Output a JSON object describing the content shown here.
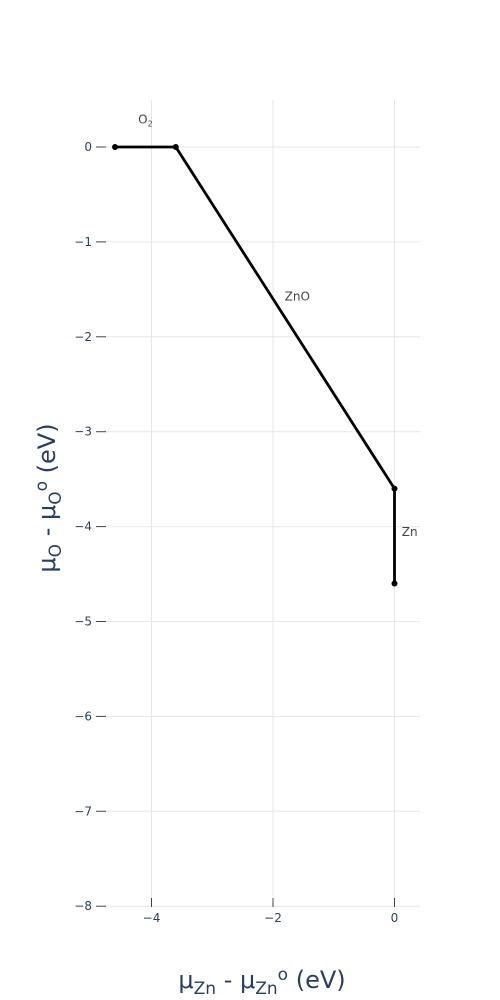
{
  "chart_data": {
    "type": "line",
    "title": "",
    "xlabel": "μ_Zn - μ_Zn^o (eV)",
    "ylabel": "μ_O - μ_O^o (eV)",
    "xlim": [
      -4.6,
      0.42
    ],
    "ylim": [
      -8,
      0.5
    ],
    "grid": true,
    "x_ticks": [
      -4,
      -2,
      0
    ],
    "x_tick_labels": [
      "−4",
      "−2",
      "0"
    ],
    "y_ticks": [
      0,
      -1,
      -2,
      -3,
      -4,
      -5,
      -6,
      -7,
      -8
    ],
    "y_tick_labels": [
      "0",
      "−1",
      "−2",
      "−3",
      "−4",
      "−5",
      "−6",
      "−7",
      "−8"
    ],
    "series": [
      {
        "name": "O2",
        "x": [
          -4.6,
          -3.6
        ],
        "y": [
          0,
          0
        ]
      },
      {
        "name": "ZnO",
        "x": [
          -3.6,
          0
        ],
        "y": [
          0,
          -3.6
        ]
      },
      {
        "name": "Zn",
        "x": [
          0,
          0
        ],
        "y": [
          -3.6,
          -4.6
        ]
      }
    ],
    "region_labels": [
      {
        "text": "O2",
        "x": -4.1,
        "y": 0.25
      },
      {
        "text": "ZnO",
        "x": -1.6,
        "y": -1.62
      },
      {
        "text": "Zn",
        "x": 0.25,
        "y": -4.1
      }
    ],
    "line_color": "#000000"
  }
}
